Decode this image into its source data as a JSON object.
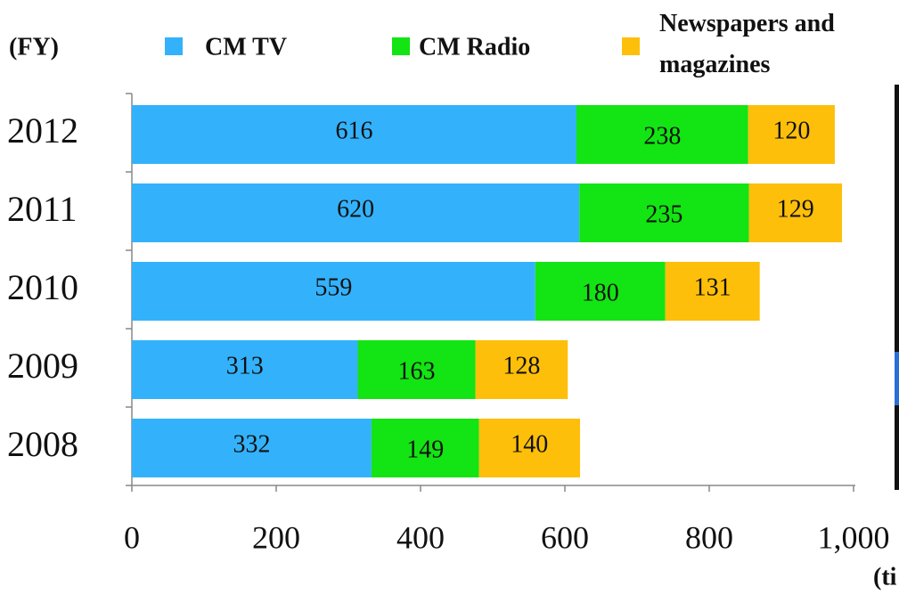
{
  "chart_data": {
    "type": "stacked-barh",
    "categories": [
      "2012",
      "2011",
      "2010",
      "2009",
      "2008"
    ],
    "series": [
      {
        "name": "CM TV",
        "color": "#33b2fb",
        "values": [
          616,
          620,
          559,
          313,
          332
        ]
      },
      {
        "name": "CM Radio",
        "color": "#13e413",
        "values": [
          238,
          235,
          180,
          163,
          149
        ]
      },
      {
        "name": "Newspapers and magazines",
        "color": "#fdbf0a",
        "values": [
          120,
          129,
          131,
          128,
          140
        ]
      }
    ],
    "xlim": [
      0,
      1000
    ],
    "xticks": [
      0,
      200,
      400,
      600,
      800,
      {
        "value": 1000,
        "label": "1,000"
      }
    ],
    "legend_title": "(FY)",
    "unit_label": "(ti",
    "legend": "top"
  }
}
